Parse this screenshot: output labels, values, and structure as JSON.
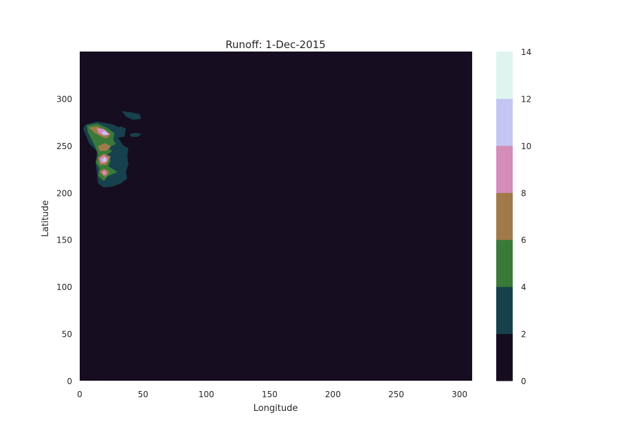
{
  "chart_data": {
    "type": "heatmap",
    "title": "Runoff: 1-Dec-2015",
    "xlabel": "Longitude",
    "ylabel": "Latitude",
    "xlim": [
      0,
      310
    ],
    "ylim": [
      0,
      350
    ],
    "xticks": [
      0,
      50,
      100,
      150,
      200,
      250,
      300
    ],
    "yticks": [
      0,
      50,
      100,
      150,
      200,
      250,
      300
    ],
    "grid": false,
    "colorbar": {
      "levels": [
        0,
        2,
        4,
        6,
        8,
        10,
        12,
        14
      ],
      "ticks": [
        0,
        2,
        4,
        6,
        8,
        10,
        12,
        14
      ],
      "colors": [
        "#170d20",
        "#16414d",
        "#3a7a38",
        "#a07a4a",
        "#d48cb9",
        "#c3c5f2",
        "#dff4ef"
      ]
    },
    "regions": [
      {
        "level": 2,
        "name": "",
        "points": [
          [
            5,
            272
          ],
          [
            14,
            275
          ],
          [
            26,
            272
          ],
          [
            32,
            268
          ],
          [
            30,
            258
          ],
          [
            34,
            250
          ],
          [
            37,
            240
          ],
          [
            38,
            230
          ],
          [
            36,
            222
          ],
          [
            37,
            215
          ],
          [
            32,
            210
          ],
          [
            26,
            207
          ],
          [
            19,
            206
          ],
          [
            15,
            210
          ],
          [
            14,
            220
          ],
          [
            13,
            232
          ],
          [
            14,
            244
          ],
          [
            8,
            252
          ],
          [
            5,
            262
          ],
          [
            3,
            268
          ]
        ]
      },
      {
        "level": 2,
        "name": "",
        "points": [
          [
            28,
            245
          ],
          [
            34,
            250
          ],
          [
            38,
            247
          ],
          [
            37,
            238
          ],
          [
            31,
            236
          ]
        ]
      },
      {
        "level": 2,
        "name": "",
        "points": [
          [
            28,
            265
          ],
          [
            32,
            270
          ],
          [
            36,
            268
          ],
          [
            35,
            260
          ],
          [
            30,
            259
          ]
        ]
      },
      {
        "level": 2,
        "name": "",
        "points": [
          [
            34,
            286
          ],
          [
            40,
            285
          ],
          [
            47,
            283
          ],
          [
            48,
            279
          ],
          [
            42,
            278
          ],
          [
            37,
            281
          ]
        ]
      },
      {
        "level": 2,
        "name": "",
        "points": [
          [
            40,
            262
          ],
          [
            44,
            263
          ],
          [
            48,
            262
          ],
          [
            46,
            260
          ],
          [
            41,
            260
          ]
        ]
      },
      {
        "level": 4,
        "name": "",
        "points": [
          [
            6,
            271
          ],
          [
            14,
            273
          ],
          [
            22,
            268
          ],
          [
            27,
            263
          ],
          [
            26,
            256
          ],
          [
            28,
            252
          ],
          [
            22,
            248
          ],
          [
            25,
            244
          ],
          [
            20,
            240
          ],
          [
            24,
            234
          ],
          [
            22,
            228
          ],
          [
            29,
            222
          ],
          [
            22,
            218
          ],
          [
            19,
            213
          ],
          [
            15,
            218
          ],
          [
            16,
            226
          ],
          [
            13,
            232
          ],
          [
            15,
            240
          ],
          [
            13,
            248
          ],
          [
            10,
            256
          ],
          [
            7,
            264
          ]
        ]
      },
      {
        "level": 6,
        "name": "",
        "points": [
          [
            8,
            269
          ],
          [
            14,
            270
          ],
          [
            20,
            266
          ],
          [
            24,
            262
          ],
          [
            21,
            258
          ],
          [
            16,
            261
          ],
          [
            12,
            264
          ]
        ]
      },
      {
        "level": 6,
        "name": "",
        "points": [
          [
            15,
            249
          ],
          [
            20,
            252
          ],
          [
            24,
            249
          ],
          [
            21,
            245
          ],
          [
            16,
            245
          ]
        ]
      },
      {
        "level": 6,
        "name": "",
        "points": [
          [
            15,
            237
          ],
          [
            19,
            241
          ],
          [
            24,
            238
          ],
          [
            21,
            230
          ],
          [
            16,
            230
          ]
        ]
      },
      {
        "level": 6,
        "name": "",
        "points": [
          [
            16,
            222
          ],
          [
            19,
            225
          ],
          [
            23,
            222
          ],
          [
            20,
            217
          ]
        ]
      },
      {
        "level": 8,
        "name": "",
        "points": [
          [
            14,
            268
          ],
          [
            19,
            267
          ],
          [
            23,
            262
          ],
          [
            19,
            261
          ],
          [
            15,
            264
          ]
        ]
      },
      {
        "level": 8,
        "name": "",
        "points": [
          [
            16,
            236
          ],
          [
            19,
            239
          ],
          [
            22,
            236
          ],
          [
            20,
            232
          ],
          [
            17,
            232
          ]
        ]
      },
      {
        "level": 8,
        "name": "",
        "points": [
          [
            18,
            222
          ],
          [
            20,
            223
          ],
          [
            21,
            220
          ],
          [
            19,
            219
          ]
        ]
      },
      {
        "level": 10,
        "name": "",
        "points": [
          [
            18,
            264
          ],
          [
            20,
            265
          ],
          [
            22,
            262
          ],
          [
            19,
            262
          ]
        ]
      },
      {
        "level": 10,
        "name": "",
        "points": [
          [
            18,
            235
          ],
          [
            20,
            237
          ],
          [
            21,
            234
          ],
          [
            19,
            233
          ]
        ]
      }
    ]
  }
}
